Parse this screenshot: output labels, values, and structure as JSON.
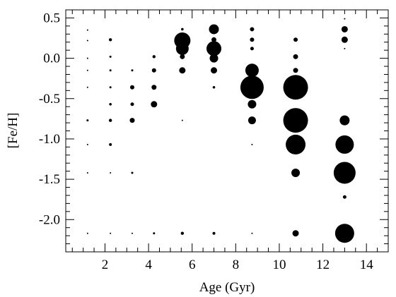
{
  "chart_data": {
    "type": "scatter",
    "title": "",
    "xlabel": "Age (Gyr)",
    "ylabel": "[Fe/H]",
    "xlim": [
      0.2,
      15.0
    ],
    "ylim": [
      -2.4,
      0.6
    ],
    "x_ticks": [
      2,
      4,
      6,
      8,
      10,
      12,
      14
    ],
    "x_tick_labels": [
      "2",
      "4",
      "6",
      "8",
      "10",
      "12",
      "14"
    ],
    "y_ticks": [
      0.5,
      0.0,
      -0.5,
      -1.0,
      -1.5,
      -2.0
    ],
    "y_tick_labels": [
      "0.5",
      "0.0",
      "-0.5",
      "-1.0",
      "-1.5",
      "-2.0"
    ],
    "grid": false,
    "marker_size_encoding": "relative weight (larger filled circle = larger value)",
    "points": [
      {
        "x": 1.2,
        "y": 0.35,
        "w": 0.1
      },
      {
        "x": 1.2,
        "y": 0.22,
        "w": 0.1
      },
      {
        "x": 1.2,
        "y": 0.0,
        "w": 0.1
      },
      {
        "x": 1.2,
        "y": -0.15,
        "w": 0.1
      },
      {
        "x": 1.2,
        "y": -0.36,
        "w": 0.1
      },
      {
        "x": 1.2,
        "y": -0.77,
        "w": 0.15
      },
      {
        "x": 1.2,
        "y": -1.07,
        "w": 0.1
      },
      {
        "x": 1.2,
        "y": -1.42,
        "w": 0.1
      },
      {
        "x": 1.2,
        "y": -2.17,
        "w": 0.1
      },
      {
        "x": 2.25,
        "y": 0.23,
        "w": 0.22
      },
      {
        "x": 2.25,
        "y": 0.02,
        "w": 0.15
      },
      {
        "x": 2.25,
        "y": -0.15,
        "w": 0.15
      },
      {
        "x": 2.25,
        "y": -0.36,
        "w": 0.15
      },
      {
        "x": 2.25,
        "y": -0.57,
        "w": 0.18
      },
      {
        "x": 2.25,
        "y": -0.77,
        "w": 0.22
      },
      {
        "x": 2.25,
        "y": -1.07,
        "w": 0.2
      },
      {
        "x": 2.25,
        "y": -1.42,
        "w": 0.1
      },
      {
        "x": 2.25,
        "y": -2.17,
        "w": 0.1
      },
      {
        "x": 3.25,
        "y": -0.15,
        "w": 0.15
      },
      {
        "x": 3.25,
        "y": -0.36,
        "w": 0.3
      },
      {
        "x": 3.25,
        "y": -0.57,
        "w": 0.25
      },
      {
        "x": 3.25,
        "y": -0.77,
        "w": 0.35
      },
      {
        "x": 3.25,
        "y": -1.42,
        "w": 0.15
      },
      {
        "x": 3.25,
        "y": -2.17,
        "w": 0.1
      },
      {
        "x": 4.25,
        "y": 0.02,
        "w": 0.22
      },
      {
        "x": 4.25,
        "y": -0.15,
        "w": 0.3
      },
      {
        "x": 4.25,
        "y": -0.36,
        "w": 0.35
      },
      {
        "x": 4.25,
        "y": -0.57,
        "w": 0.45
      },
      {
        "x": 4.25,
        "y": -2.17,
        "w": 0.15
      },
      {
        "x": 5.55,
        "y": 0.36,
        "w": 0.18
      },
      {
        "x": 5.55,
        "y": 0.22,
        "w": 1.15
      },
      {
        "x": 5.55,
        "y": 0.12,
        "w": 0.9
      },
      {
        "x": 5.55,
        "y": 0.02,
        "w": 0.35
      },
      {
        "x": 5.55,
        "y": -0.15,
        "w": 0.45
      },
      {
        "x": 5.55,
        "y": -0.77,
        "w": 0.1
      },
      {
        "x": 5.55,
        "y": -2.17,
        "w": 0.22
      },
      {
        "x": 7.0,
        "y": 0.36,
        "w": 0.7
      },
      {
        "x": 7.0,
        "y": 0.23,
        "w": 0.35
      },
      {
        "x": 7.0,
        "y": 0.12,
        "w": 1.05
      },
      {
        "x": 7.0,
        "y": 0.0,
        "w": 0.6
      },
      {
        "x": 7.0,
        "y": -0.15,
        "w": 0.45
      },
      {
        "x": 7.0,
        "y": -0.36,
        "w": 0.18
      },
      {
        "x": 7.0,
        "y": -2.17,
        "w": 0.2
      },
      {
        "x": 8.75,
        "y": 0.36,
        "w": 0.3
      },
      {
        "x": 8.75,
        "y": 0.23,
        "w": 0.3
      },
      {
        "x": 8.75,
        "y": 0.12,
        "w": 0.25
      },
      {
        "x": 8.75,
        "y": -0.15,
        "w": 0.95
      },
      {
        "x": 8.75,
        "y": -0.36,
        "w": 1.65
      },
      {
        "x": 8.75,
        "y": -0.57,
        "w": 0.6
      },
      {
        "x": 8.75,
        "y": -0.77,
        "w": 0.55
      },
      {
        "x": 8.75,
        "y": -1.07,
        "w": 0.1
      },
      {
        "x": 8.75,
        "y": -2.17,
        "w": 0.1
      },
      {
        "x": 10.75,
        "y": 0.23,
        "w": 0.3
      },
      {
        "x": 10.75,
        "y": 0.02,
        "w": 0.35
      },
      {
        "x": 10.75,
        "y": -0.15,
        "w": 0.35
      },
      {
        "x": 10.75,
        "y": -0.36,
        "w": 1.75
      },
      {
        "x": 10.75,
        "y": -0.77,
        "w": 1.75
      },
      {
        "x": 10.75,
        "y": -1.07,
        "w": 1.4
      },
      {
        "x": 10.75,
        "y": -1.42,
        "w": 0.6
      },
      {
        "x": 10.75,
        "y": -2.17,
        "w": 0.45
      },
      {
        "x": 13.0,
        "y": 0.49,
        "w": 0.1
      },
      {
        "x": 13.0,
        "y": 0.36,
        "w": 0.45
      },
      {
        "x": 13.0,
        "y": 0.23,
        "w": 0.45
      },
      {
        "x": 13.0,
        "y": 0.12,
        "w": 0.1
      },
      {
        "x": 13.0,
        "y": -0.77,
        "w": 0.7
      },
      {
        "x": 13.0,
        "y": -1.07,
        "w": 1.3
      },
      {
        "x": 13.0,
        "y": -1.42,
        "w": 1.55
      },
      {
        "x": 13.0,
        "y": -1.72,
        "w": 0.25
      },
      {
        "x": 13.0,
        "y": -2.17,
        "w": 1.35
      }
    ]
  }
}
